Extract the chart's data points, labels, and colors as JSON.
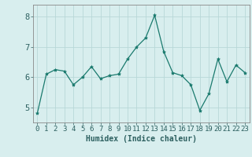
{
  "x": [
    0,
    1,
    2,
    3,
    4,
    5,
    6,
    7,
    8,
    9,
    10,
    11,
    12,
    13,
    14,
    15,
    16,
    17,
    18,
    19,
    20,
    21,
    22,
    23
  ],
  "y": [
    4.8,
    6.1,
    6.25,
    6.2,
    5.75,
    6.0,
    6.35,
    5.95,
    6.05,
    6.1,
    6.6,
    7.0,
    7.3,
    8.05,
    6.85,
    6.15,
    6.05,
    5.75,
    4.9,
    5.45,
    6.6,
    5.85,
    6.4,
    6.15
  ],
  "line_color": "#1a7a6e",
  "marker": "*",
  "marker_size": 3,
  "bg_color": "#d8eeee",
  "grid_color": "#b8d8d8",
  "xlabel": "Humidex (Indice chaleur)",
  "ylim": [
    4.5,
    8.4
  ],
  "xlim": [
    -0.5,
    23.5
  ],
  "yticks": [
    5,
    6,
    7,
    8
  ],
  "xticks": [
    0,
    1,
    2,
    3,
    4,
    5,
    6,
    7,
    8,
    9,
    10,
    11,
    12,
    13,
    14,
    15,
    16,
    17,
    18,
    19,
    20,
    21,
    22,
    23
  ],
  "tick_color": "#2d6060",
  "axis_color": "#888888",
  "xlabel_fontsize": 7,
  "tick_fontsize": 6.5
}
